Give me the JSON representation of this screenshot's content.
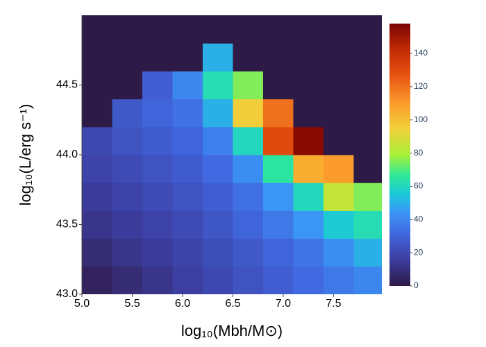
{
  "chart_data": {
    "type": "heatmap",
    "x_label": "log₁₀(Mbh/M⊙)",
    "y_label": "log₁₀(L/erg s⁻¹)",
    "x": [
      5.15,
      5.45,
      5.75,
      6.05,
      6.35,
      6.65,
      6.95,
      7.25,
      7.55,
      7.85
    ],
    "y": [
      43.1,
      43.3,
      43.5,
      43.7,
      43.9,
      44.1,
      44.3,
      44.5,
      44.7,
      44.9
    ],
    "z": [
      [
        4,
        8,
        12,
        16,
        20,
        24,
        28,
        32,
        36,
        40
      ],
      [
        8,
        12,
        15,
        18,
        22,
        26,
        30,
        35,
        42,
        50
      ],
      [
        12,
        15,
        18,
        21,
        25,
        30,
        36,
        44,
        56,
        62
      ],
      [
        15,
        18,
        21,
        24,
        28,
        34,
        44,
        60,
        85,
        75
      ],
      [
        18,
        21,
        24,
        27,
        32,
        42,
        65,
        105,
        110,
        0
      ],
      [
        20,
        24,
        27,
        30,
        38,
        60,
        130,
        155,
        0,
        0
      ],
      [
        0,
        26,
        30,
        34,
        50,
        95,
        120,
        0,
        0,
        0
      ],
      [
        0,
        0,
        28,
        40,
        62,
        75,
        0,
        0,
        0,
        0
      ],
      [
        0,
        0,
        0,
        0,
        50,
        0,
        0,
        0,
        0,
        0
      ],
      [
        0,
        0,
        0,
        0,
        0,
        0,
        0,
        0,
        0,
        0
      ]
    ],
    "xlim": [
      5,
      7.98
    ],
    "ylim": [
      43,
      45
    ],
    "xticks": [
      {
        "value": 5,
        "label": "5.0"
      },
      {
        "value": 5.5,
        "label": "5.5"
      },
      {
        "value": 6,
        "label": "6.0"
      },
      {
        "value": 6.5,
        "label": "6.5"
      },
      {
        "value": 7,
        "label": "7.0"
      },
      {
        "value": 7.5,
        "label": "7.5"
      }
    ],
    "yticks": [
      {
        "value": 43,
        "label": "43.0"
      },
      {
        "value": 43.5,
        "label": "43.5"
      },
      {
        "value": 44,
        "label": "44.0"
      },
      {
        "value": 44.5,
        "label": "44.5"
      }
    ],
    "zlim": [
      0,
      158
    ],
    "zticks": [
      0,
      20,
      40,
      60,
      80,
      100,
      120,
      140
    ],
    "colorscale": [
      [
        0,
        "#2e1a47"
      ],
      [
        0.1,
        "#3c3da0"
      ],
      [
        0.2,
        "#4168e0"
      ],
      [
        0.28,
        "#3a96f5"
      ],
      [
        0.35,
        "#1cc8d8"
      ],
      [
        0.42,
        "#2ee89a"
      ],
      [
        0.5,
        "#a8f03a"
      ],
      [
        0.6,
        "#f2d03a"
      ],
      [
        0.7,
        "#fb9a2c"
      ],
      [
        0.8,
        "#e85512"
      ],
      [
        0.9,
        "#c22a04"
      ],
      [
        1,
        "#7a0403"
      ]
    ]
  }
}
